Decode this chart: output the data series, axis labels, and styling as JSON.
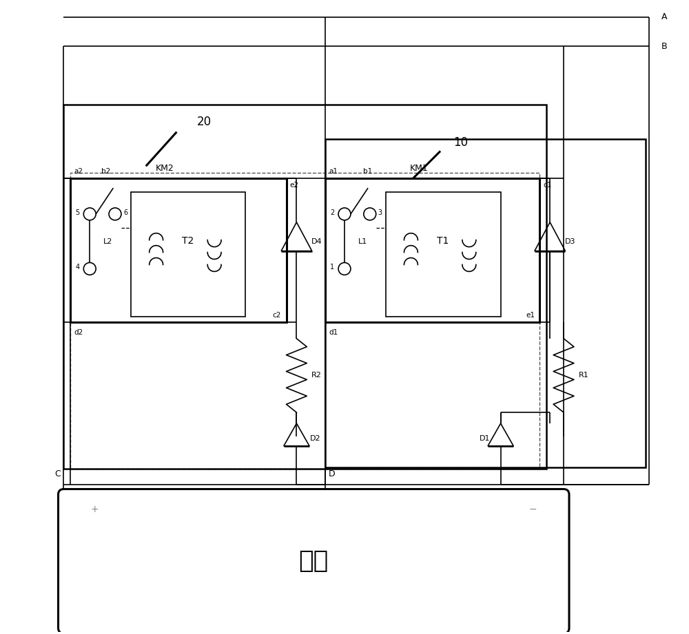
{
  "bg_color": "#ffffff",
  "line_color": "#000000",
  "figsize": [
    10.0,
    9.21
  ],
  "label_A": "A",
  "label_B": "B",
  "label_C": "C",
  "label_D": "D",
  "label_20": "20",
  "label_10": "10",
  "label_KM1": "KM1",
  "label_KM2": "KM2",
  "label_T1": "T1",
  "label_T2": "T2",
  "label_D1": "D1",
  "label_D2": "D2",
  "label_D3": "D3",
  "label_D4": "D4",
  "label_R1": "R1",
  "label_R2": "R2",
  "label_L1": "L1",
  "label_L2": "L2",
  "label_a1": "a1",
  "label_b1": "b1",
  "label_c1": "c1",
  "label_d1": "d1",
  "label_e1": "e1",
  "label_a2": "a2",
  "label_b2": "b2",
  "label_c2": "c2",
  "label_d2": "d2",
  "label_e2": "e2",
  "label_load": "负载",
  "label_plus": "+",
  "label_minus": "−"
}
